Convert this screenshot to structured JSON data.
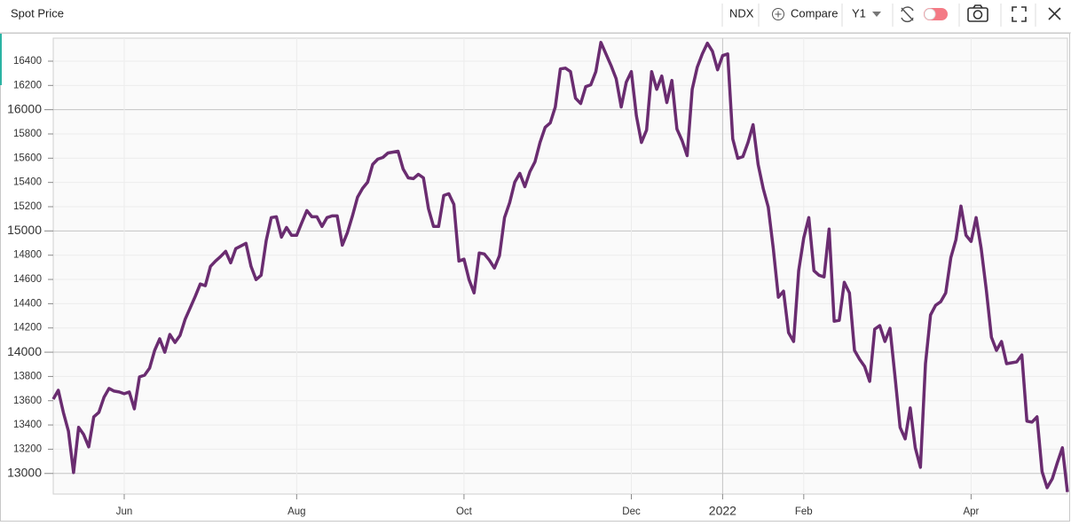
{
  "toolbar": {
    "title": "Spot Price",
    "symbol": "NDX",
    "compare": "Compare",
    "period": "Y1"
  },
  "chart_data": {
    "type": "line",
    "categories": [
      null,
      null,
      null,
      null,
      null,
      null,
      null,
      null,
      null,
      null,
      null,
      null,
      null,
      null,
      "Jun",
      null,
      null,
      null,
      null,
      null,
      null,
      null,
      null,
      null,
      null,
      null,
      null,
      null,
      null,
      null,
      null,
      null,
      null,
      null,
      null,
      null,
      null,
      null,
      null,
      null,
      null,
      null,
      null,
      null,
      null,
      null,
      null,
      null,
      "Aug",
      null,
      null,
      null,
      null,
      null,
      null,
      null,
      null,
      null,
      null,
      null,
      null,
      null,
      null,
      null,
      null,
      null,
      null,
      null,
      null,
      null,
      null,
      null,
      null,
      null,
      null,
      null,
      null,
      null,
      null,
      null,
      null,
      "Oct",
      null,
      null,
      null,
      null,
      null,
      null,
      null,
      null,
      null,
      null,
      null,
      null,
      null,
      null,
      null,
      null,
      null,
      null,
      null,
      null,
      null,
      null,
      null,
      null,
      null,
      null,
      null,
      null,
      null,
      null,
      null,
      null,
      "Dec",
      null,
      null,
      null,
      null,
      null,
      null,
      null,
      null,
      null,
      null,
      null,
      null,
      null,
      null,
      null,
      null,
      null,
      "2022",
      null,
      null,
      null,
      null,
      null,
      null,
      null,
      null,
      null,
      null,
      null,
      null,
      null,
      null,
      null,
      "Feb",
      null,
      null,
      null,
      null,
      null,
      null,
      null,
      null,
      null,
      null,
      null,
      null,
      null,
      null,
      null,
      null,
      null,
      null,
      null,
      null,
      null,
      null,
      null,
      null,
      null,
      null,
      null,
      null,
      null,
      null,
      null,
      null,
      "Apr",
      null,
      null,
      null,
      null,
      null,
      null,
      null,
      null,
      null,
      null,
      null,
      null,
      null,
      null,
      null,
      null,
      null,
      null,
      null
    ],
    "series": [
      {
        "name": "NDX",
        "color": "#6a2c70",
        "values": [
          13613,
          13686,
          13504,
          13350,
          13007,
          13380,
          13321,
          13219,
          13467,
          13504,
          13628,
          13701,
          13679,
          13672,
          13657,
          13672,
          13533,
          13796,
          13810,
          13869,
          14015,
          14110,
          14000,
          14146,
          14080,
          14139,
          14270,
          14365,
          14460,
          14562,
          14548,
          14708,
          14752,
          14789,
          14832,
          14737,
          14854,
          14876,
          14898,
          14708,
          14599,
          14635,
          14920,
          15110,
          15117,
          14949,
          15029,
          14964,
          14964,
          15066,
          15168,
          15117,
          15117,
          15037,
          15110,
          15124,
          15124,
          14883,
          14986,
          15124,
          15278,
          15351,
          15402,
          15548,
          15592,
          15606,
          15643,
          15650,
          15657,
          15511,
          15438,
          15431,
          15467,
          15438,
          15183,
          15037,
          15037,
          15292,
          15307,
          15219,
          14752,
          14767,
          14599,
          14489,
          14818,
          14810,
          14759,
          14694,
          14796,
          15110,
          15234,
          15402,
          15475,
          15365,
          15489,
          15570,
          15730,
          15854,
          15891,
          16022,
          16336,
          16343,
          16314,
          16095,
          16051,
          16190,
          16205,
          16314,
          16555,
          16460,
          16365,
          16256,
          16022,
          16227,
          16314,
          15949,
          15730,
          15832,
          16314,
          16168,
          16278,
          16059,
          16241,
          15840,
          15745,
          15621,
          16168,
          16351,
          16460,
          16548,
          16482,
          16329,
          16446,
          16460,
          15759,
          15599,
          15613,
          15730,
          15876,
          15548,
          15351,
          15197,
          14854,
          14453,
          14504,
          14161,
          14088,
          14672,
          14942,
          15110,
          14672,
          14635,
          14621,
          15015,
          14256,
          14263,
          14577,
          14489,
          14015,
          13942,
          13883,
          13759,
          14190,
          14219,
          14088,
          14197,
          13796,
          13380,
          13285,
          13540,
          13212,
          13051,
          13905,
          14307,
          14387,
          14416,
          14489,
          14781,
          14927,
          15205,
          14964,
          14913,
          15110,
          14854,
          14511,
          14124,
          14015,
          14088,
          13905,
          13913,
          13920,
          13978,
          13431,
          13423,
          13467,
          13015,
          12883,
          12956,
          13088,
          13212,
          12847
        ]
      }
    ],
    "ylim": [
      12830,
      16590
    ],
    "yticks": [
      13000,
      13200,
      13400,
      13600,
      13800,
      14000,
      14200,
      14400,
      14600,
      14800,
      15000,
      15200,
      15400,
      15600,
      15800,
      16000,
      16200,
      16400
    ],
    "grid": true
  }
}
